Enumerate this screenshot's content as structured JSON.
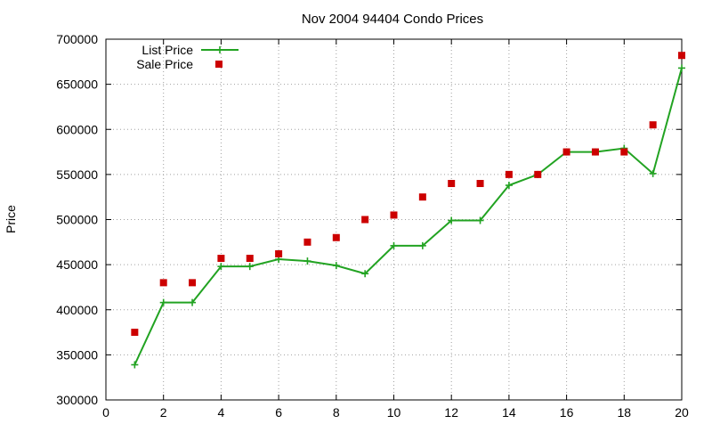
{
  "chart_data": {
    "type": "line",
    "title": "Nov 2004 94404 Condo Prices",
    "xlabel": "",
    "ylabel": "Price",
    "xlim": [
      0,
      20
    ],
    "ylim": [
      300000,
      700000
    ],
    "x_ticks": [
      0,
      2,
      4,
      6,
      8,
      10,
      12,
      14,
      16,
      18,
      20
    ],
    "y_ticks": [
      300000,
      350000,
      400000,
      450000,
      500000,
      550000,
      600000,
      650000,
      700000
    ],
    "grid": true,
    "legend_position": "top-left",
    "series": [
      {
        "name": "List Price",
        "style": "line-with-plus-markers",
        "color": "#22a322",
        "x": [
          1,
          2,
          3,
          4,
          5,
          6,
          7,
          8,
          9,
          10,
          11,
          12,
          13,
          14,
          15,
          16,
          17,
          18,
          19,
          20
        ],
        "values": [
          339000,
          408000,
          408000,
          448000,
          448000,
          456000,
          454000,
          449000,
          440000,
          471000,
          471000,
          499000,
          499000,
          538000,
          550000,
          575000,
          575000,
          579000,
          551000,
          668000
        ]
      },
      {
        "name": "Sale Price",
        "style": "square-markers",
        "color": "#cc0000",
        "x": [
          1,
          2,
          3,
          4,
          5,
          6,
          7,
          8,
          9,
          10,
          11,
          12,
          13,
          14,
          15,
          16,
          17,
          18,
          19,
          20
        ],
        "values": [
          375000,
          430000,
          430000,
          457000,
          457000,
          462000,
          475000,
          480000,
          500000,
          505000,
          525000,
          540000,
          540000,
          550000,
          550000,
          575000,
          575000,
          575000,
          605000,
          682000
        ]
      }
    ]
  }
}
